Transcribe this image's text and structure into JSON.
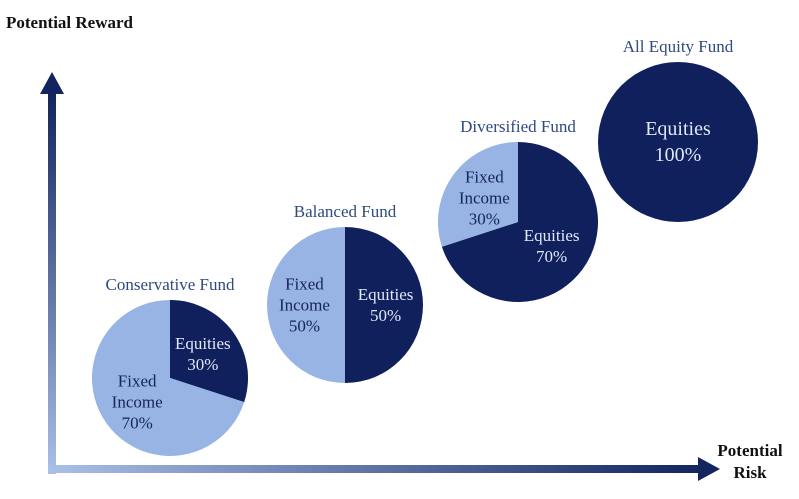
{
  "axes": {
    "y_label": "Potential Reward",
    "x_label": "Potential Risk"
  },
  "chart_data": [
    {
      "type": "pie",
      "title": "Conservative Fund",
      "categories": [
        "Equities",
        "Fixed Income"
      ],
      "values": [
        30,
        70
      ],
      "value_labels": [
        "30%",
        "70%"
      ],
      "colors": [
        "#10205c",
        "#97b4e4"
      ]
    },
    {
      "type": "pie",
      "title": "Balanced Fund",
      "categories": [
        "Equities",
        "Fixed Income"
      ],
      "values": [
        50,
        50
      ],
      "value_labels": [
        "50%",
        "50%"
      ],
      "colors": [
        "#10205c",
        "#97b4e4"
      ]
    },
    {
      "type": "pie",
      "title": "Diversified Fund",
      "categories": [
        "Equities",
        "Fixed Income"
      ],
      "values": [
        70,
        30
      ],
      "value_labels": [
        "70%",
        "30%"
      ],
      "colors": [
        "#10205c",
        "#97b4e4"
      ]
    },
    {
      "type": "pie",
      "title": "All Equity Fund",
      "categories": [
        "Equities"
      ],
      "values": [
        100
      ],
      "value_labels": [
        "100%"
      ],
      "colors": [
        "#10205c"
      ]
    }
  ]
}
